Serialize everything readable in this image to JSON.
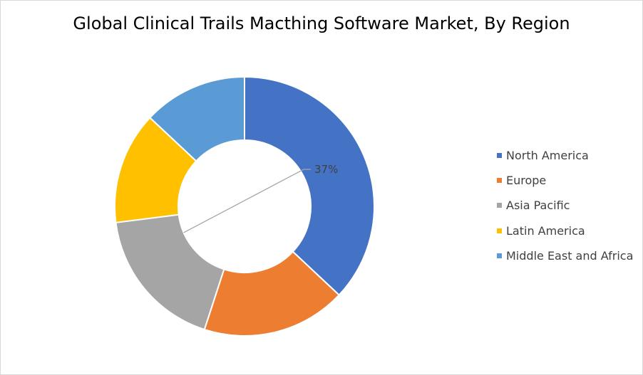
{
  "chart_data": {
    "type": "pie",
    "title": "Global Clinical Trails Macthing Software Market, By Region",
    "donut": true,
    "legend_position": "right",
    "slices": [
      {
        "label": "North America",
        "value": 37,
        "color": "#4472C4"
      },
      {
        "label": "Europe",
        "value": 18,
        "color": "#ED7D31"
      },
      {
        "label": "Asia Pacific",
        "value": 18,
        "color": "#A5A5A5"
      },
      {
        "label": "Latin America",
        "value": 14,
        "color": "#FFC000"
      },
      {
        "label": "Middle East and Africa",
        "value": 13,
        "color": "#5B9BD5"
      }
    ],
    "data_labels": [
      {
        "series": "North America",
        "text": "37%"
      }
    ]
  }
}
